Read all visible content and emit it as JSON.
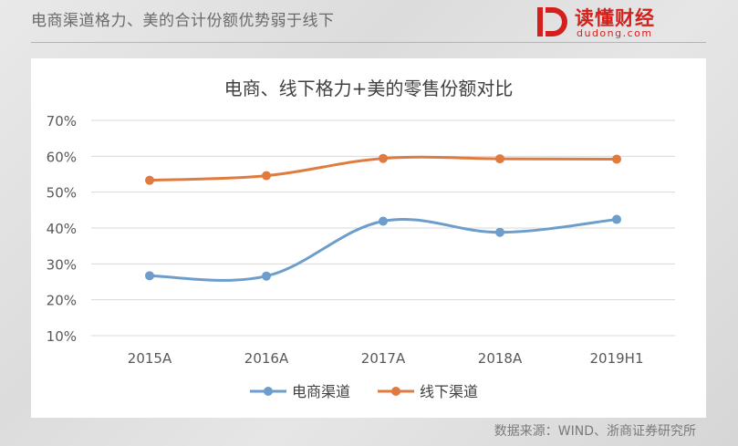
{
  "header": {
    "title": "电商渠道格力、美的合计份额优势弱于线下"
  },
  "logo": {
    "name": "读懂财经",
    "domain": "dudong.com",
    "color": "#d4201c"
  },
  "source": "数据来源：WIND、浙商证券研究所",
  "chart_data": {
    "type": "line",
    "title": "电商、线下格力+美的零售份额对比",
    "categories": [
      "2015A",
      "2016A",
      "2017A",
      "2018A",
      "2019H1"
    ],
    "ylim": [
      0.1,
      0.7
    ],
    "yticks": [
      "10%",
      "20%",
      "30%",
      "40%",
      "50%",
      "60%",
      "70%"
    ],
    "grid": true,
    "legend_position": "bottom",
    "series": [
      {
        "name": "电商渠道",
        "color": "#6d9ecb",
        "values": [
          0.267,
          0.266,
          0.419,
          0.388,
          0.424
        ]
      },
      {
        "name": "线下渠道",
        "color": "#e07b3f",
        "values": [
          0.533,
          0.546,
          0.594,
          0.593,
          0.592
        ]
      }
    ]
  }
}
